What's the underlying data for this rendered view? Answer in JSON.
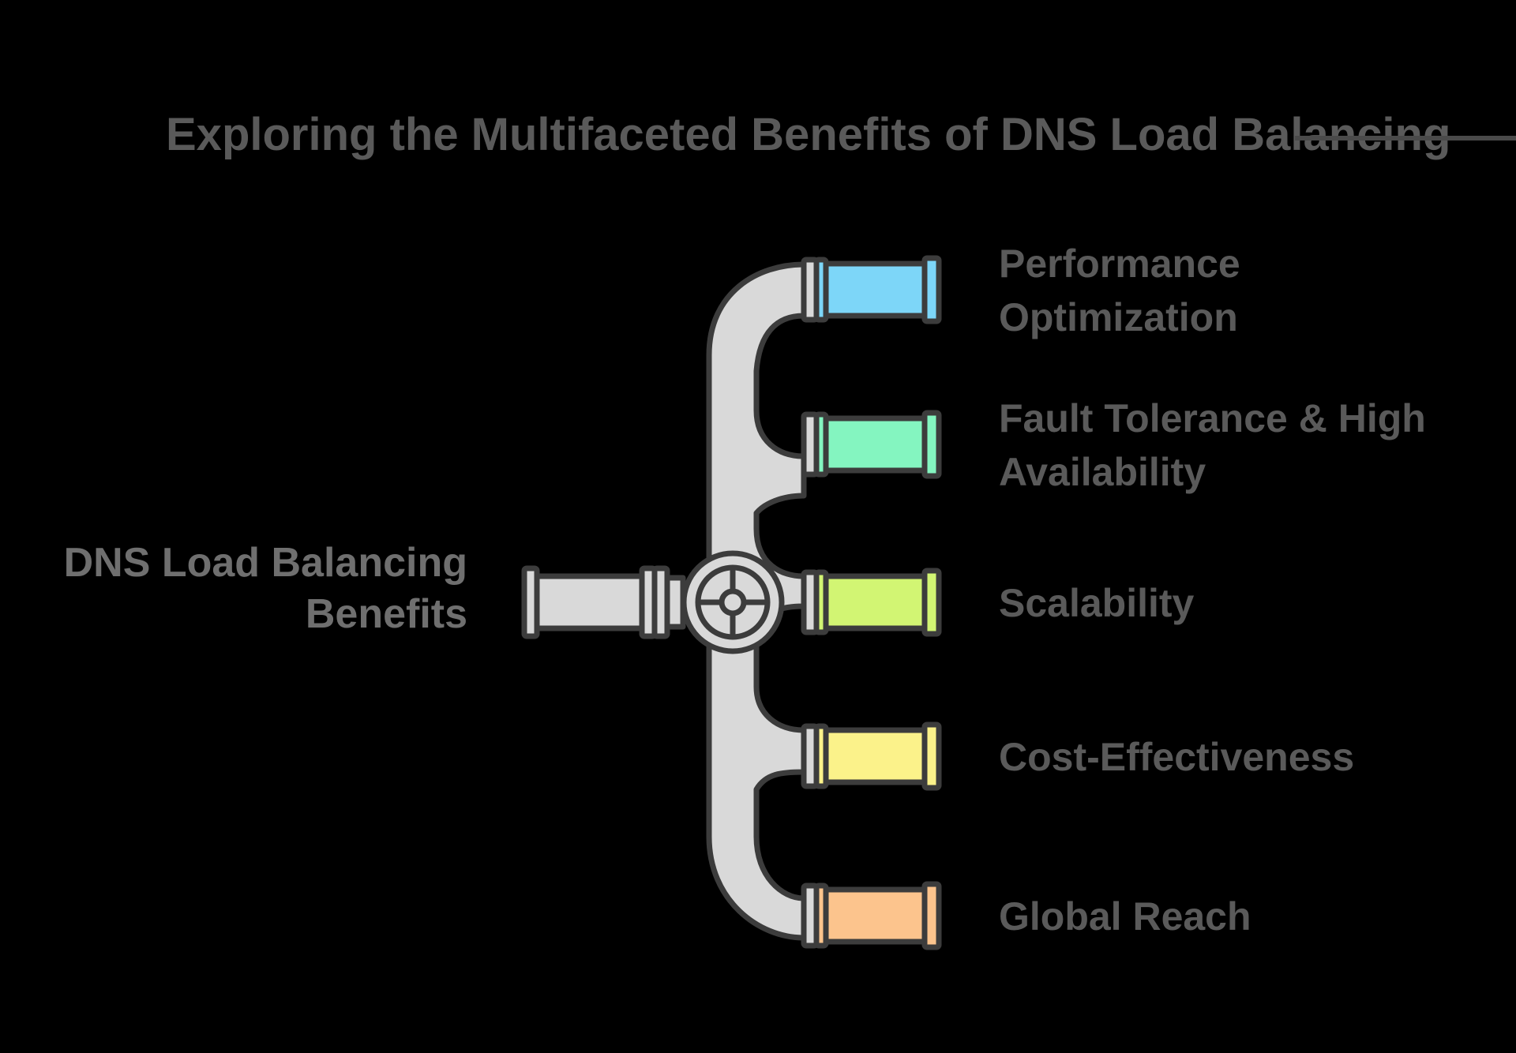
{
  "title": "Exploring the Multifaceted Benefits of DNS Load Balancing",
  "source": {
    "lines": [
      "DNS Load Balancing",
      "Benefits"
    ]
  },
  "branches": [
    {
      "lines": [
        "Performance",
        "Optimization"
      ],
      "color": "#7dd6f8"
    },
    {
      "lines": [
        "Fault Tolerance & High",
        "Availability"
      ],
      "color": "#84f5c0"
    },
    {
      "lines": [
        "Scalability"
      ],
      "color": "#d2f573"
    },
    {
      "lines": [
        "Cost-Effectiveness"
      ],
      "color": "#fbf28a"
    },
    {
      "lines": [
        "Global Reach"
      ],
      "color": "#fcc48d"
    }
  ],
  "colors": {
    "pipe": "#d9d9d9",
    "outline": "#3c3c3c",
    "background": "#000000"
  },
  "icons": {
    "valve": "valve-wheel-icon"
  }
}
